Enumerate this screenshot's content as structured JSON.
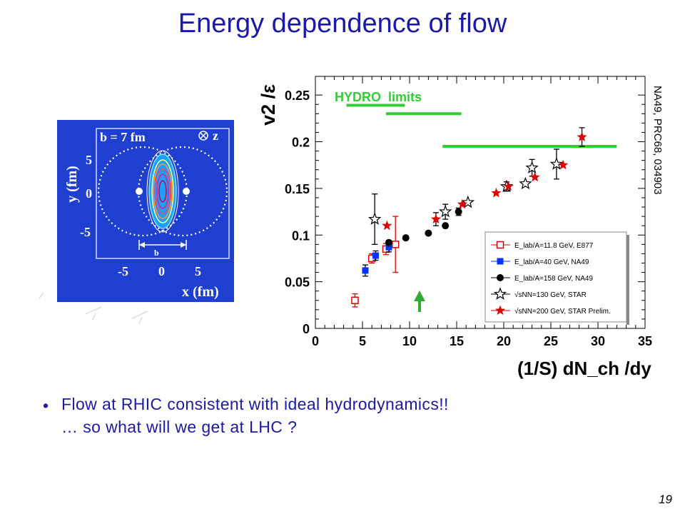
{
  "slide": {
    "title": "Energy dependence of flow",
    "bullets": [
      "Flow at RHIC consistent with ideal hydrodynamics!!",
      "… so what will we get at LHC ?"
    ],
    "reference": "NA49, PRC68, 034903",
    "page_number": "19"
  },
  "inset": {
    "b_label": "b = 7 fm",
    "z_label": "z",
    "b_arrow_label": "b",
    "y_axis_label": "y (fm)",
    "x_axis_label": "x (fm)",
    "y_ticks": [
      "5",
      "0",
      "-5"
    ],
    "x_ticks": [
      "-5",
      "0",
      "5"
    ],
    "background_color": "#1f3fd0"
  },
  "chart_data": {
    "type": "scatter",
    "title": "",
    "xlabel": "(1/S) dN_ch /dy",
    "ylabel": "v2 /ε",
    "xlim": [
      0,
      35
    ],
    "ylim": [
      0,
      0.27
    ],
    "xticks": [
      "0",
      "5",
      "10",
      "15",
      "20",
      "25",
      "30",
      "35"
    ],
    "yticks": [
      "0",
      "0.05",
      "0.1",
      "0.15",
      "0.2",
      "0.25"
    ],
    "annotation": "HYDRO  limits",
    "hydro_limits": [
      {
        "x0": 3.3,
        "x1": 9.5,
        "y": 0.239
      },
      {
        "x0": 7.5,
        "x1": 15.5,
        "y": 0.23
      },
      {
        "x0": 13.5,
        "x1": 32,
        "y": 0.195
      }
    ],
    "legend_position": "bottom-right",
    "series": [
      {
        "name": "E_lab/A=11.8 GeV, E877",
        "marker": "open-square",
        "color": "#e00000",
        "points": [
          {
            "x": 4.2,
            "y": 0.03,
            "err": 0.007
          },
          {
            "x": 6.0,
            "y": 0.075,
            "err": 0.005
          },
          {
            "x": 7.5,
            "y": 0.085,
            "err": 0.006
          },
          {
            "x": 8.5,
            "y": 0.09,
            "err": 0.03
          }
        ]
      },
      {
        "name": "E_lab/A=40 GeV, NA49",
        "marker": "filled-square",
        "color": "#0033ff",
        "points": [
          {
            "x": 5.3,
            "y": 0.062,
            "err": 0.006
          },
          {
            "x": 6.4,
            "y": 0.078,
            "err": 0.005
          },
          {
            "x": 7.8,
            "y": 0.087,
            "err": 0.005
          }
        ]
      },
      {
        "name": "E_lab/A=158 GeV, NA49",
        "marker": "filled-circle",
        "color": "#000000",
        "points": [
          {
            "x": 7.8,
            "y": 0.092,
            "err": 0.0
          },
          {
            "x": 9.6,
            "y": 0.097,
            "err": 0.0
          },
          {
            "x": 12.0,
            "y": 0.102,
            "err": 0.0
          },
          {
            "x": 13.8,
            "y": 0.11,
            "err": 0.0
          },
          {
            "x": 15.2,
            "y": 0.125,
            "err": 0.004
          }
        ]
      },
      {
        "name": "√sNN=130 GeV, STAR",
        "marker": "open-star",
        "color": "#000000",
        "points": [
          {
            "x": 6.3,
            "y": 0.117,
            "err": 0.027
          },
          {
            "x": 13.8,
            "y": 0.125,
            "err": 0.008
          },
          {
            "x": 16.2,
            "y": 0.135,
            "err": 0.0
          },
          {
            "x": 20.3,
            "y": 0.152,
            "err": 0.005
          },
          {
            "x": 22.3,
            "y": 0.155,
            "err": 0.0
          },
          {
            "x": 23.0,
            "y": 0.172,
            "err": 0.009
          },
          {
            "x": 25.6,
            "y": 0.176,
            "err": 0.016
          }
        ]
      },
      {
        "name": "√sNN=200 GeV, STAR Prelim.",
        "marker": "filled-star",
        "color": "#e00000",
        "points": [
          {
            "x": 7.6,
            "y": 0.11,
            "err": 0.0
          },
          {
            "x": 12.8,
            "y": 0.117,
            "err": 0.007
          },
          {
            "x": 15.6,
            "y": 0.133,
            "err": 0.0
          },
          {
            "x": 19.2,
            "y": 0.145,
            "err": 0.0
          },
          {
            "x": 20.5,
            "y": 0.152,
            "err": 0.0
          },
          {
            "x": 23.3,
            "y": 0.162,
            "err": 0.0
          },
          {
            "x": 26.3,
            "y": 0.175,
            "err": 0.0
          },
          {
            "x": 28.3,
            "y": 0.205,
            "err": 0.01
          }
        ]
      }
    ]
  }
}
